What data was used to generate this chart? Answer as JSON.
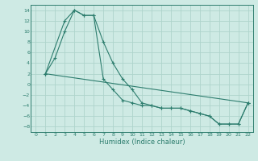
{
  "line1_x": [
    1,
    2,
    3,
    4,
    5,
    6,
    7,
    8,
    9,
    10,
    11,
    12,
    13,
    14,
    15,
    16,
    17,
    18,
    19,
    20,
    21,
    22
  ],
  "line1_y": [
    2,
    5,
    10,
    14,
    13,
    13,
    8,
    4,
    1,
    -1,
    -3.5,
    -4,
    -4.5,
    -4.5,
    -4.5,
    -5,
    -5.5,
    -6,
    -7.5,
    -7.5,
    -7.5,
    -3.5
  ],
  "line2_x": [
    1,
    3,
    4,
    5,
    6,
    7,
    8,
    9,
    10,
    11,
    12,
    13,
    14,
    15,
    16,
    17,
    18,
    19,
    20,
    21,
    22
  ],
  "line2_y": [
    2,
    12,
    14,
    13,
    13,
    1,
    -1,
    -3,
    -3.5,
    -4,
    -4,
    -4.5,
    -4.5,
    -4.5,
    -5,
    -5.5,
    -6,
    -7.5,
    -7.5,
    -7.5,
    -3.5
  ],
  "line3_x": [
    1,
    22
  ],
  "line3_y": [
    2,
    -3.5
  ],
  "line_color": "#2d7d6e",
  "bg_color": "#ceeae4",
  "grid_color": "#aed4cc",
  "xlabel": "Humidex (Indice chaleur)",
  "xlim": [
    -0.5,
    22.5
  ],
  "ylim": [
    -9,
    15
  ],
  "xticks": [
    0,
    1,
    2,
    3,
    4,
    5,
    6,
    7,
    8,
    9,
    10,
    11,
    12,
    13,
    14,
    15,
    16,
    17,
    18,
    19,
    20,
    21,
    22
  ],
  "yticks": [
    -8,
    -6,
    -4,
    -2,
    0,
    2,
    4,
    6,
    8,
    10,
    12,
    14
  ]
}
